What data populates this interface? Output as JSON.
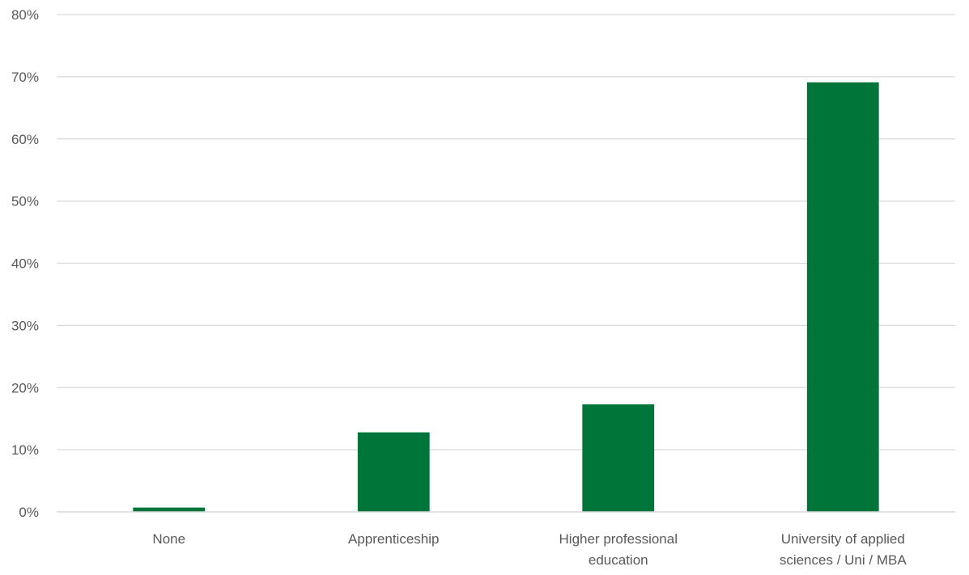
{
  "chart_data": {
    "type": "bar",
    "title": "",
    "xlabel": "",
    "ylabel": "",
    "categories": [
      [
        "None"
      ],
      [
        "Apprenticeship"
      ],
      [
        "Higher professional",
        "education"
      ],
      [
        "University of applied",
        "sciences / Uni / MBA"
      ]
    ],
    "values": [
      0.7,
      12.8,
      17.3,
      69.1
    ],
    "ylim": [
      0,
      80
    ],
    "yticks": [
      "0%",
      "10%",
      "20%",
      "30%",
      "40%",
      "50%",
      "60%",
      "70%",
      "80%"
    ],
    "grid": true,
    "legend": "none",
    "colors": {
      "bar": "#00753A",
      "grid": "#D9D9D9",
      "axis": "#D9D9D9",
      "text": "#595959"
    }
  }
}
